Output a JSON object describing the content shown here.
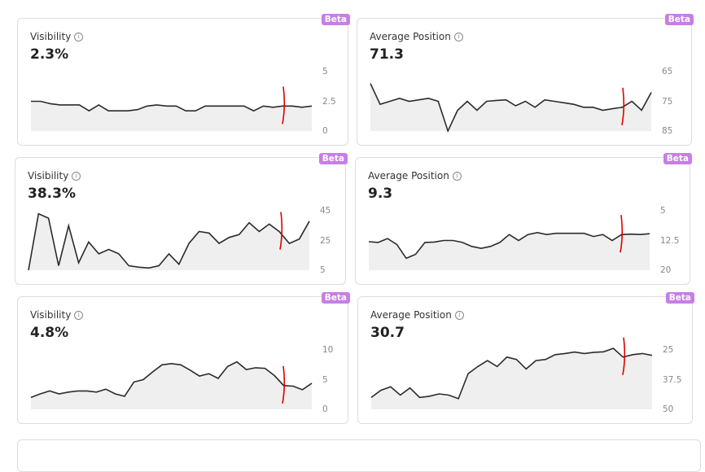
{
  "cards": [
    {
      "badge": "Beta",
      "title": "Visibility",
      "value": "2.3%",
      "ticks": [
        "5",
        "2.5",
        "0"
      ],
      "ylim": [
        0,
        5
      ],
      "inverted": false,
      "values": [
        2.5,
        2.5,
        2.3,
        2.2,
        2.2,
        2.2,
        1.7,
        2.2,
        1.7,
        1.7,
        1.7,
        1.8,
        2.1,
        2.2,
        2.1,
        2.1,
        1.7,
        1.7,
        2.1,
        2.1,
        2.1,
        2.1,
        2.1,
        1.7,
        2.1,
        2.0,
        2.1,
        2.1,
        2.0,
        2.1
      ]
    },
    {
      "badge": "Beta",
      "title": "Average Position",
      "value": "71.3",
      "ticks": [
        "65",
        "75",
        "85"
      ],
      "ylim": [
        65,
        85
      ],
      "inverted": true,
      "values": [
        69,
        76,
        75,
        74,
        75,
        74.5,
        74,
        75,
        85,
        78,
        75,
        78,
        75,
        74.7,
        74.5,
        76.5,
        75,
        77,
        74.5,
        75,
        75.5,
        76,
        77,
        77,
        78,
        77.5,
        77,
        75,
        78,
        72
      ]
    },
    {
      "badge": "Beta",
      "title": "Visibility",
      "value": "38.3%",
      "ticks": [
        "45",
        "25",
        "5"
      ],
      "ylim": [
        5,
        45
      ],
      "inverted": false,
      "values": [
        5,
        43,
        40,
        8,
        35,
        10,
        24,
        16,
        19,
        16,
        8,
        7,
        6.5,
        8,
        16,
        9,
        23,
        31,
        30,
        23,
        27,
        29,
        37,
        31,
        36,
        31,
        23,
        26,
        38
      ]
    },
    {
      "badge": "Beta",
      "title": "Average Position",
      "value": "9.3",
      "ticks": [
        "5",
        "12.5",
        "20"
      ],
      "ylim": [
        5,
        20
      ],
      "inverted": true,
      "values": [
        12.8,
        13,
        12,
        13.5,
        17,
        16,
        13,
        12.9,
        12.5,
        12.5,
        13,
        14,
        14.5,
        14,
        13,
        11,
        12.5,
        11,
        10.5,
        11,
        10.7,
        10.7,
        10.7,
        10.7,
        11.5,
        11,
        12.5,
        11,
        10.9,
        11,
        10.8
      ]
    },
    {
      "badge": "Beta",
      "title": "Visibility",
      "value": "4.8%",
      "ticks": [
        "10",
        "5",
        "0"
      ],
      "ylim": [
        0,
        10
      ],
      "inverted": false,
      "values": [
        2,
        2.6,
        3.1,
        2.6,
        2.9,
        3.1,
        3.1,
        2.9,
        3.4,
        2.6,
        2.2,
        4.6,
        5,
        6.3,
        7.5,
        7.7,
        7.5,
        6.6,
        5.6,
        6,
        5.2,
        7.2,
        8,
        6.7,
        7,
        6.9,
        5.7,
        4,
        3.9,
        3.3,
        4.4
      ]
    },
    {
      "badge": "Beta",
      "title": "Average Position",
      "value": "30.7",
      "ticks": [
        "25",
        "37.5",
        "50"
      ],
      "ylim": [
        25,
        50
      ],
      "inverted": true,
      "values": [
        45,
        42,
        40.5,
        44,
        41,
        45,
        44.5,
        43.5,
        44,
        45.5,
        35,
        32,
        29.5,
        32,
        28,
        29,
        33,
        29.5,
        29,
        27,
        26.5,
        25.9,
        26.5,
        26,
        25.8,
        24.3,
        28,
        27,
        26.5,
        27.3
      ]
    }
  ],
  "colors": {
    "line": "#2b2b2b",
    "fill": "#efefef",
    "badge": "#c77ee6",
    "annotation": "#e00000"
  }
}
